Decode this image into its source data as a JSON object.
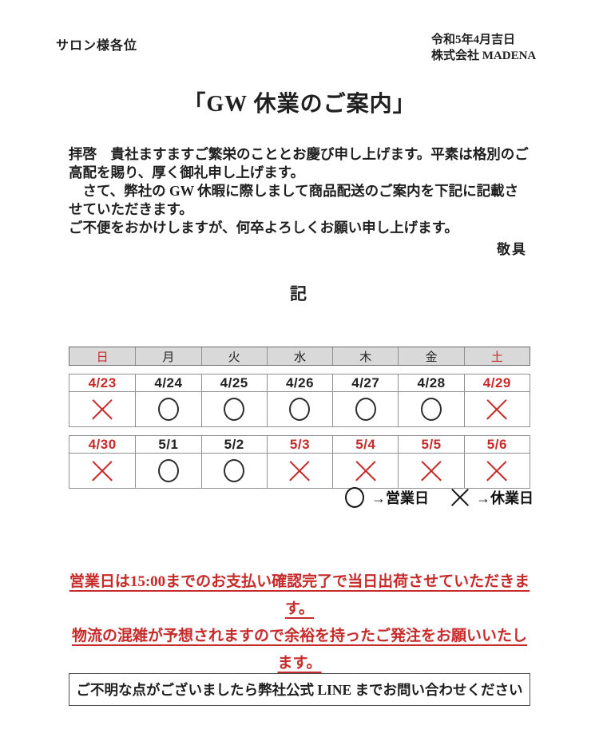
{
  "document": {
    "recipient": "サロン様各位",
    "issue_date": "令和5年4月吉日",
    "company": "株式会社 MADENA",
    "title": "「GW 休業のご案内」",
    "greeting_paragraph_1": "拝啓　貴社ますますご繁栄のこととお慶び申し上げます。平素は格別のご高配を賜り、厚く御礼申し上げます。",
    "greeting_paragraph_2": "　さて、弊社の GW 休暇に際しまして商品配送のご案内を下記に記載させていただきます。",
    "greeting_paragraph_3": "ご不便をおかけしますが、何卒よろしくお願い申し上げます。",
    "closing": "敬具",
    "record_marker": "記"
  },
  "calendar": {
    "day_headers": [
      {
        "label": "日",
        "red": true
      },
      {
        "label": "月",
        "red": false
      },
      {
        "label": "火",
        "red": false
      },
      {
        "label": "水",
        "red": false
      },
      {
        "label": "木",
        "red": false
      },
      {
        "label": "金",
        "red": false
      },
      {
        "label": "土",
        "red": true
      }
    ],
    "weeks": [
      {
        "dates": [
          {
            "label": "4/23",
            "red": true
          },
          {
            "label": "4/24",
            "red": false
          },
          {
            "label": "4/25",
            "red": false
          },
          {
            "label": "4/26",
            "red": false
          },
          {
            "label": "4/27",
            "red": false
          },
          {
            "label": "4/28",
            "red": false
          },
          {
            "label": "4/29",
            "red": true
          }
        ],
        "marks": [
          {
            "symbol": "cross",
            "red": true
          },
          {
            "symbol": "circle",
            "red": false
          },
          {
            "symbol": "circle",
            "red": false
          },
          {
            "symbol": "circle",
            "red": false
          },
          {
            "symbol": "circle",
            "red": false
          },
          {
            "symbol": "circle",
            "red": false
          },
          {
            "symbol": "cross",
            "red": true
          }
        ]
      },
      {
        "dates": [
          {
            "label": "4/30",
            "red": true
          },
          {
            "label": "5/1",
            "red": false
          },
          {
            "label": "5/2",
            "red": false
          },
          {
            "label": "5/3",
            "red": true
          },
          {
            "label": "5/4",
            "red": true
          },
          {
            "label": "5/5",
            "red": true
          },
          {
            "label": "5/6",
            "red": true
          }
        ],
        "marks": [
          {
            "symbol": "cross",
            "red": true
          },
          {
            "symbol": "circle",
            "red": false
          },
          {
            "symbol": "circle",
            "red": false
          },
          {
            "symbol": "cross",
            "red": true
          },
          {
            "symbol": "cross",
            "red": true
          },
          {
            "symbol": "cross",
            "red": true
          },
          {
            "symbol": "cross",
            "red": true
          }
        ]
      }
    ],
    "legend": {
      "open_label": "→営業日",
      "closed_label": "→休業日"
    }
  },
  "notice": {
    "line1": "営業日は15:00までのお支払い確認完了で当日出荷させていただきます。",
    "line2": "物流の混雑が予想されますので余裕を持ったご発注をお願いいたします。"
  },
  "footer": {
    "contact_note": "ご不明な点がございましたら弊社公式 LINE までお問い合わせください"
  },
  "colors": {
    "accent_red": "#c62a2a",
    "day_header_bg": "#d9d9d9"
  }
}
